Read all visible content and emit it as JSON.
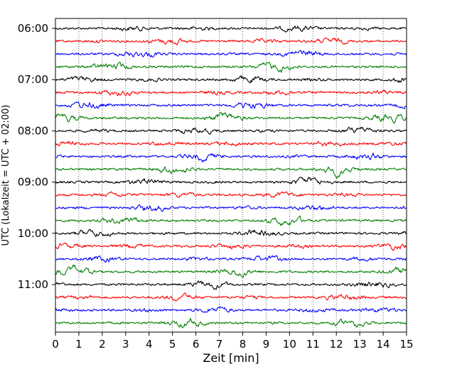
{
  "chart_data": {
    "type": "line",
    "subtype": "seismic-helicorder",
    "xlabel": "Zeit  [min]",
    "ylabel": "UTC (Lokalzeit = UTC + 02:00)",
    "xlim": [
      0,
      15
    ],
    "x_ticks": [
      "0",
      "1",
      "2",
      "3",
      "4",
      "5",
      "6",
      "7",
      "8",
      "9",
      "10",
      "11",
      "12",
      "13",
      "14",
      "15"
    ],
    "y_tick_labels": [
      "06:00",
      "07:00",
      "08:00",
      "09:00",
      "10:00",
      "11:00"
    ],
    "grid": "vertical dotted lines at each minute",
    "trace_interval_minutes": 15,
    "trace_colors_cycle": [
      "#000000",
      "#ff0000",
      "#0000ff",
      "#008000"
    ],
    "traces": [
      {
        "start": "06:00",
        "color": "#000000"
      },
      {
        "start": "06:15",
        "color": "#ff0000"
      },
      {
        "start": "06:30",
        "color": "#0000ff"
      },
      {
        "start": "06:45",
        "color": "#008000"
      },
      {
        "start": "07:00",
        "color": "#000000"
      },
      {
        "start": "07:15",
        "color": "#ff0000"
      },
      {
        "start": "07:30",
        "color": "#0000ff"
      },
      {
        "start": "07:45",
        "color": "#008000"
      },
      {
        "start": "08:00",
        "color": "#000000"
      },
      {
        "start": "08:15",
        "color": "#ff0000"
      },
      {
        "start": "08:30",
        "color": "#0000ff"
      },
      {
        "start": "08:45",
        "color": "#008000"
      },
      {
        "start": "09:00",
        "color": "#000000"
      },
      {
        "start": "09:15",
        "color": "#ff0000"
      },
      {
        "start": "09:30",
        "color": "#0000ff"
      },
      {
        "start": "09:45",
        "color": "#008000"
      },
      {
        "start": "10:00",
        "color": "#000000"
      },
      {
        "start": "10:15",
        "color": "#ff0000"
      },
      {
        "start": "10:30",
        "color": "#0000ff"
      },
      {
        "start": "10:45",
        "color": "#008000"
      },
      {
        "start": "11:00",
        "color": "#000000"
      },
      {
        "start": "11:15",
        "color": "#ff0000"
      },
      {
        "start": "11:30",
        "color": "#0000ff"
      },
      {
        "start": "11:45",
        "color": "#008000"
      }
    ]
  }
}
